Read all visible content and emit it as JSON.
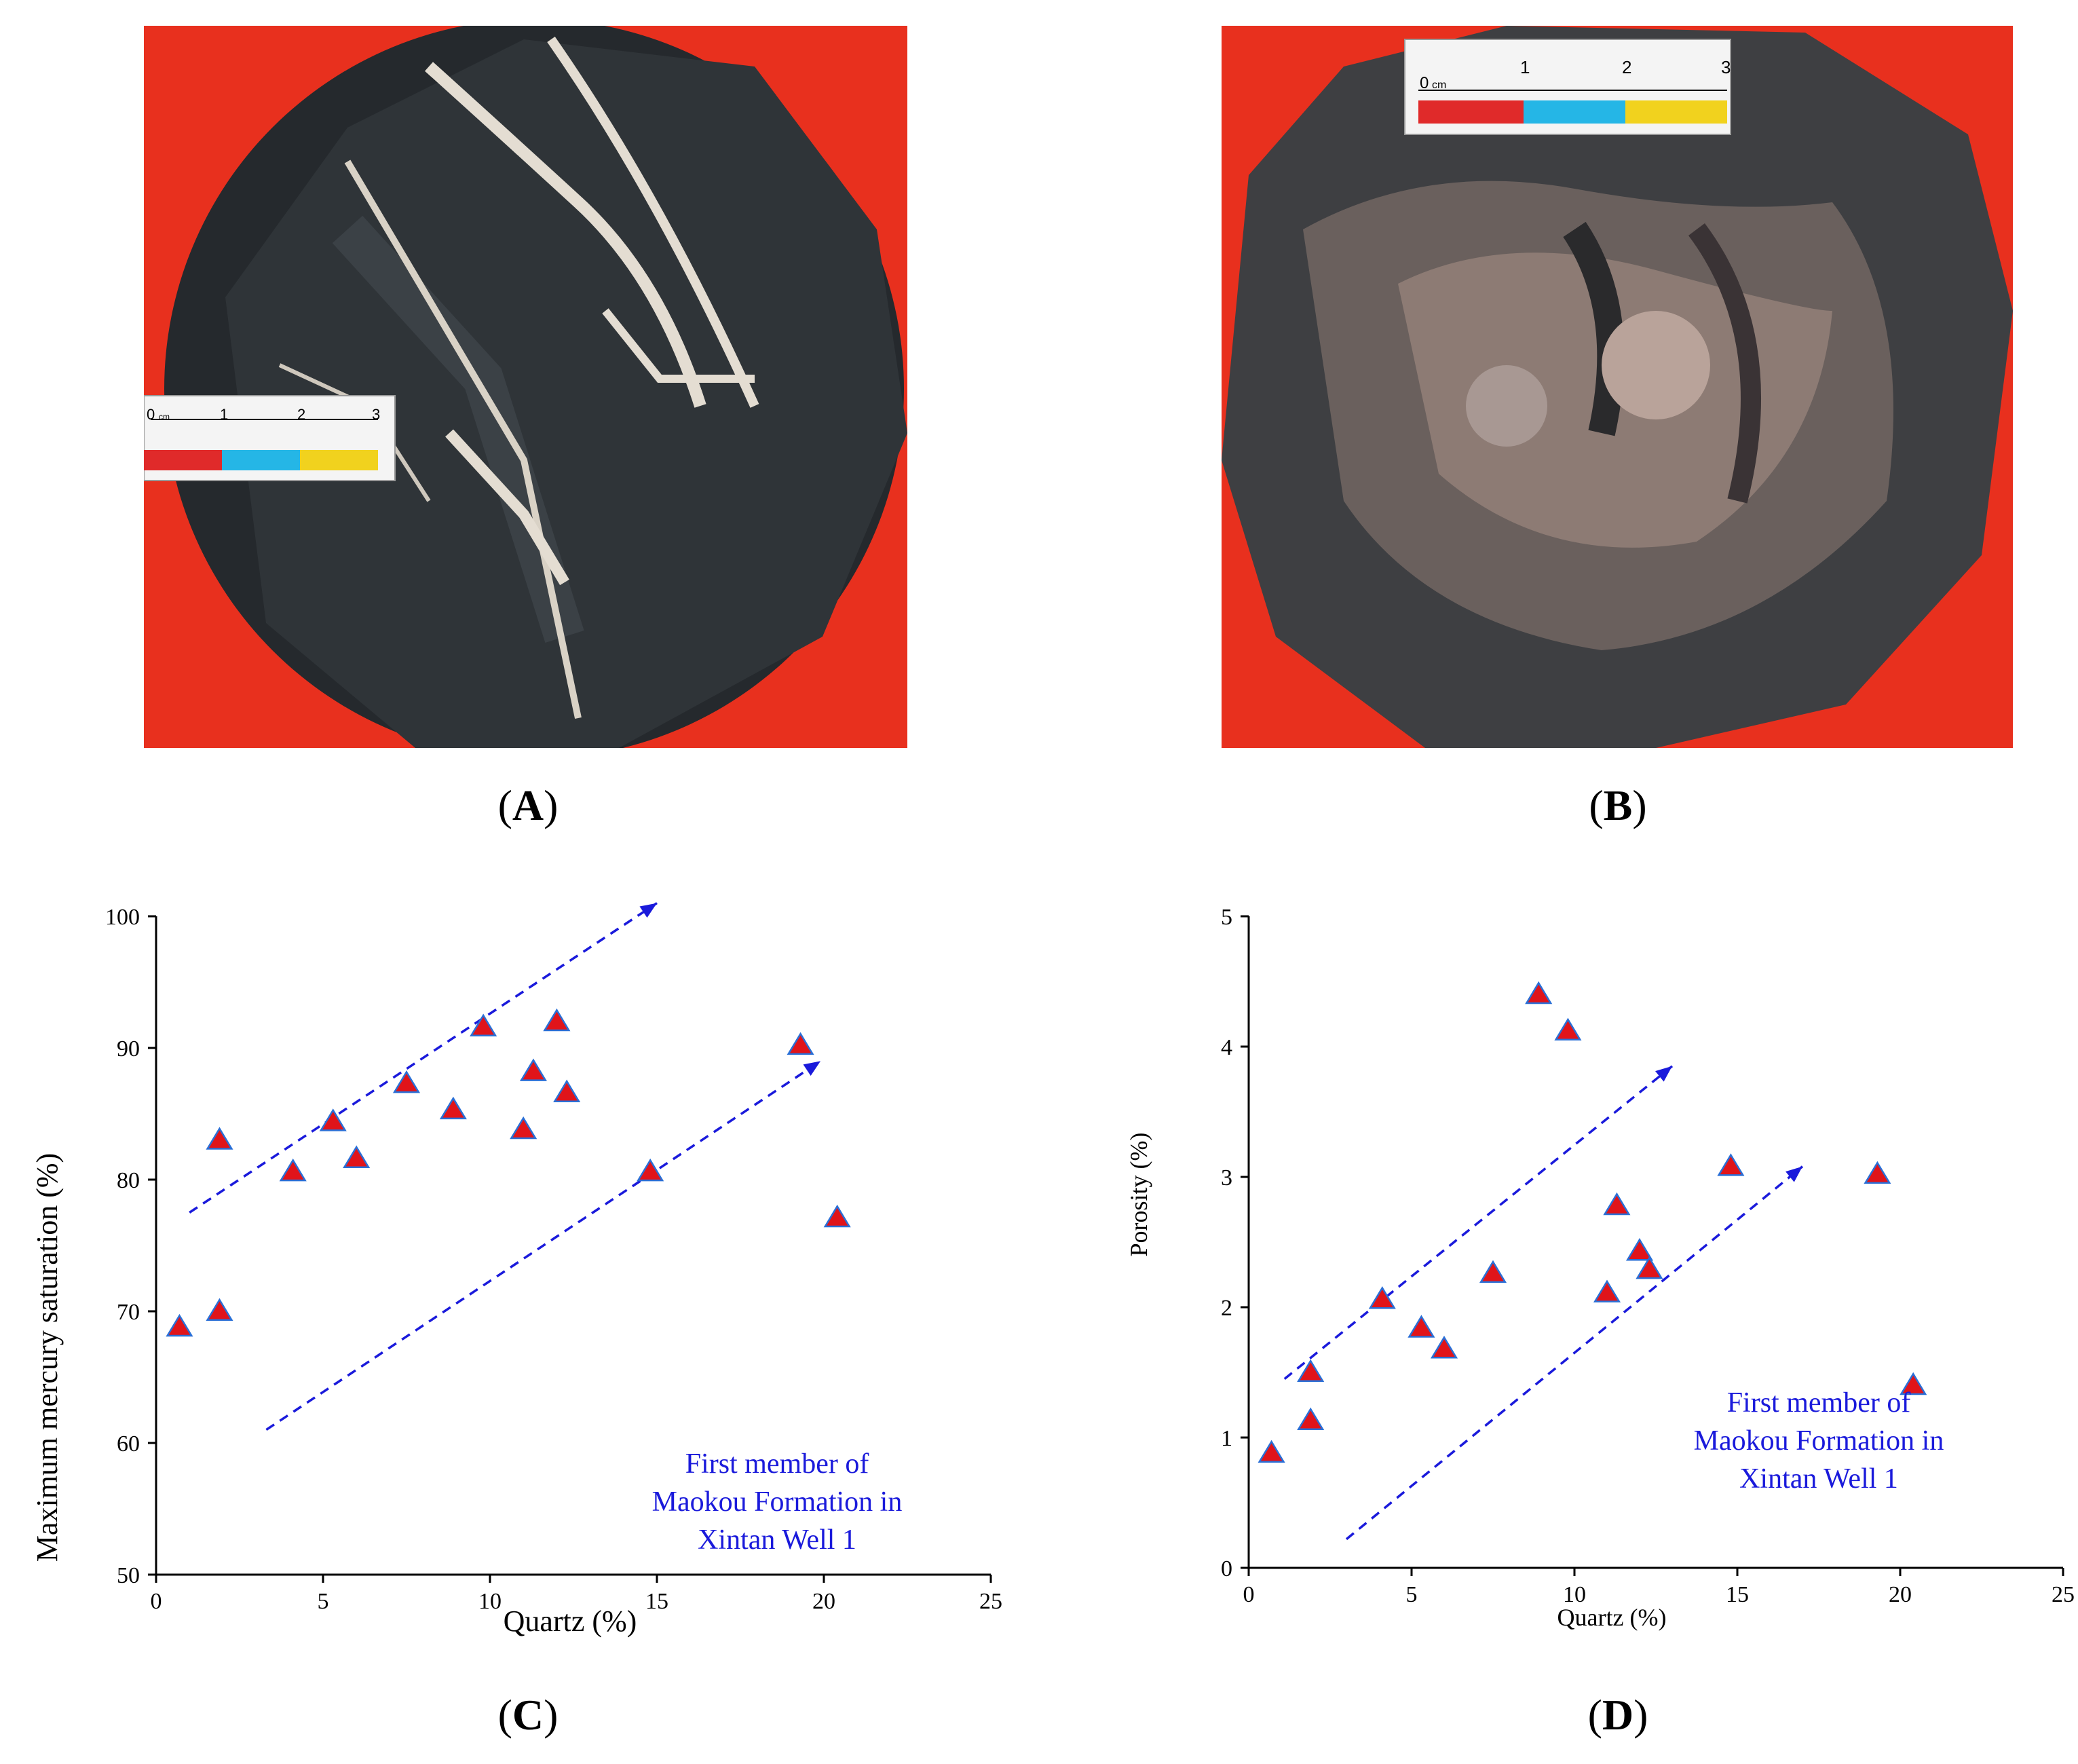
{
  "panels": {
    "a": "A",
    "b": "B",
    "c": "C",
    "d": "D"
  },
  "photos": {
    "a": {
      "scale_labels": [
        "0",
        "cm",
        "1",
        "2",
        "3"
      ],
      "colors": {
        "background": "#e8301e",
        "rock": "#2b2f33",
        "vein": "#e4ddd2"
      }
    },
    "b": {
      "scale_labels": [
        "0",
        "cm",
        "1",
        "2",
        "3"
      ],
      "colors": {
        "background": "#e8301e",
        "rock": "#4a4a4c",
        "crystals": "#b9a39a"
      }
    }
  },
  "chart_data": [
    {
      "id": "C",
      "type": "scatter",
      "xlabel": "Quartz (%)",
      "ylabel": "Maximum mercury saturation (%)",
      "xlim": [
        0,
        25
      ],
      "ylim": [
        50,
        100
      ],
      "xticks": [
        0,
        5,
        10,
        15,
        20,
        25
      ],
      "yticks": [
        50,
        60,
        70,
        80,
        90,
        100
      ],
      "grid": false,
      "marker": {
        "shape": "triangle",
        "fill": "#e0141a",
        "edge": "#2a6fd6"
      },
      "points": [
        {
          "x": 0.7,
          "y": 68.8
        },
        {
          "x": 1.9,
          "y": 70.0
        },
        {
          "x": 1.9,
          "y": 83.0
        },
        {
          "x": 4.1,
          "y": 80.6
        },
        {
          "x": 5.3,
          "y": 84.4
        },
        {
          "x": 6.0,
          "y": 81.6
        },
        {
          "x": 7.5,
          "y": 87.3
        },
        {
          "x": 8.9,
          "y": 85.3
        },
        {
          "x": 9.8,
          "y": 91.6
        },
        {
          "x": 11.0,
          "y": 83.8
        },
        {
          "x": 11.3,
          "y": 88.2
        },
        {
          "x": 12.0,
          "y": 92.0
        },
        {
          "x": 12.3,
          "y": 86.6
        },
        {
          "x": 14.8,
          "y": 80.6
        },
        {
          "x": 19.3,
          "y": 90.2
        },
        {
          "x": 20.4,
          "y": 77.1
        }
      ],
      "trend_arrows": [
        {
          "from": [
            1.0,
            77.5
          ],
          "to": [
            15.0,
            101.0
          ]
        },
        {
          "from": [
            3.3,
            61.0
          ],
          "to": [
            19.9,
            89.0
          ]
        }
      ],
      "annotation": [
        "First member of",
        "Maokou Formation in",
        "Xintan Well 1"
      ]
    },
    {
      "id": "D",
      "type": "scatter",
      "xlabel": "Quartz (%)",
      "ylabel": "Porosity (%)",
      "xlim": [
        0,
        25
      ],
      "ylim": [
        0,
        5
      ],
      "xticks": [
        0,
        5,
        10,
        15,
        20,
        25
      ],
      "yticks": [
        0,
        1,
        2,
        3,
        4,
        5
      ],
      "grid": false,
      "marker": {
        "shape": "triangle",
        "fill": "#e0141a",
        "edge": "#2a6fd6"
      },
      "points": [
        {
          "x": 0.7,
          "y": 0.88
        },
        {
          "x": 1.9,
          "y": 1.13
        },
        {
          "x": 1.9,
          "y": 1.5
        },
        {
          "x": 4.1,
          "y": 2.06
        },
        {
          "x": 5.3,
          "y": 1.84
        },
        {
          "x": 6.0,
          "y": 1.68
        },
        {
          "x": 7.5,
          "y": 2.26
        },
        {
          "x": 8.9,
          "y": 4.4
        },
        {
          "x": 9.8,
          "y": 4.12
        },
        {
          "x": 11.0,
          "y": 2.11
        },
        {
          "x": 11.3,
          "y": 2.78
        },
        {
          "x": 12.0,
          "y": 2.43
        },
        {
          "x": 12.3,
          "y": 2.29
        },
        {
          "x": 14.8,
          "y": 3.08
        },
        {
          "x": 19.3,
          "y": 3.02
        },
        {
          "x": 20.4,
          "y": 1.4
        }
      ],
      "trend_arrows": [
        {
          "from": [
            1.1,
            1.45
          ],
          "to": [
            13.0,
            3.85
          ]
        },
        {
          "from": [
            3.0,
            0.22
          ],
          "to": [
            17.0,
            3.08
          ]
        }
      ],
      "annotation": [
        "First member of",
        "Maokou Formation in",
        "Xintan Well 1"
      ]
    }
  ]
}
